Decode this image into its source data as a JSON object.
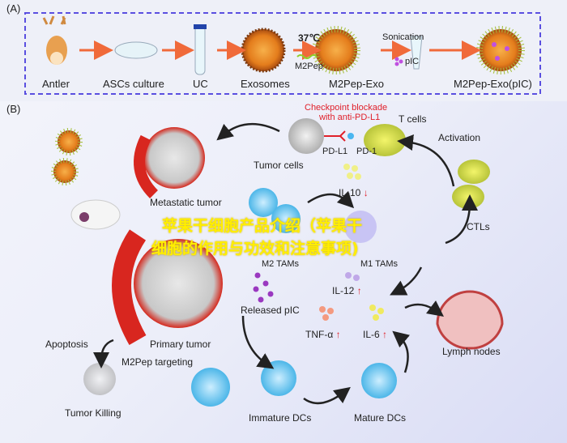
{
  "panel_a": {
    "label": "(A)",
    "steps": [
      "Antler",
      "ASCs culture",
      "UC",
      "Exosomes",
      "M2Pep-Exo",
      "M2Pep-Exo(pIC)"
    ],
    "temp": "37℃",
    "m2pep": "M2Pep",
    "sonication": "Sonication",
    "pic": "pIC"
  },
  "panel_b": {
    "label": "(B)",
    "checkpoint": "Checkpoint blockade",
    "checkpoint2": "with anti-PD-L1",
    "t_cells": "T cells",
    "pd_l1": "PD-L1",
    "pd_1": "PD-1",
    "activation": "Activation",
    "tumor_cells": "Tumor cells",
    "metastatic": "Metastatic tumor",
    "il10": "IL-10",
    "ctls": "CTLs",
    "m2_tams": "M2 TAMs",
    "m1_tams": "M1 TAMs",
    "il12": "IL-12",
    "released_pic": "Released pIC",
    "tnf": "TNF-α",
    "il6": "IL-6",
    "lymph": "Lymph nodes",
    "apoptosis": "Apoptosis",
    "primary": "Primary tumor",
    "targeting": "M2Pep targeting",
    "killing": "Tumor Killing",
    "immature": "Immature DCs",
    "mature": "Mature DCs",
    "up": "↑",
    "down": "↓"
  },
  "watermark": {
    "line1": "苹果干细胞产品介绍（苹果干",
    "line2": "细胞的作用与功效和注意事项)"
  },
  "colors": {
    "dash_border": "#5a4fe0",
    "arrow": "#f06a3a",
    "red": "#e0202a",
    "vessel": "#d8261f"
  }
}
